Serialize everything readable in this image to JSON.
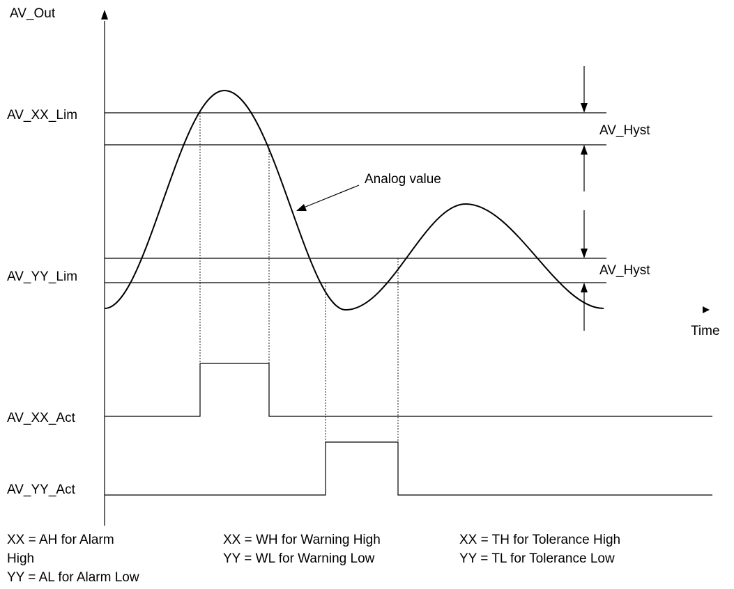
{
  "labels": {
    "y_axis": "AV_Out",
    "x_axis": "Time",
    "xx_lim": "AV_XX_Lim",
    "yy_lim": "AV_YY_Lim",
    "xx_act": "AV_XX_Act",
    "yy_act": "AV_YY_Act",
    "hyst_upper": "AV_Hyst",
    "hyst_lower": "AV_Hyst",
    "analog_value": "Analog value"
  },
  "legend": {
    "col1": [
      "XX = AH for Alarm",
      "High",
      "YY = AL for Alarm Low"
    ],
    "col2": [
      "XX =  WH for Warning High",
      "YY =  WL for Warning Low"
    ],
    "col3": [
      "XX = TH for Tolerance High",
      "YY = TL for Tolerance Low"
    ]
  }
}
